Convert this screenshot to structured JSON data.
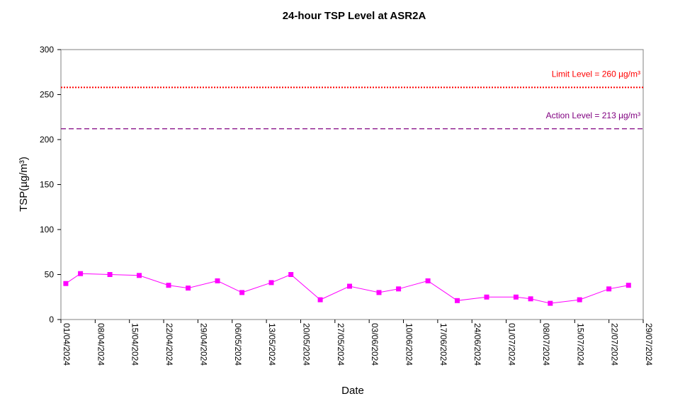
{
  "chart_data": {
    "type": "line",
    "title": "24-hour TSP Level at ASR2A",
    "xlabel": "Date",
    "ylabel": "TSP(µg/m³)",
    "ylim": [
      0,
      300
    ],
    "yticks": [
      "0",
      "50",
      "100",
      "150",
      "200",
      "250",
      "300"
    ],
    "xlim": [
      "2024-04-01",
      "2024-07-29"
    ],
    "xticks": [
      "01/04/2024",
      "08/04/2024",
      "15/04/2024",
      "22/04/2024",
      "29/04/2024",
      "06/05/2024",
      "13/05/2024",
      "20/05/2024",
      "27/05/2024",
      "03/06/2024",
      "10/06/2024",
      "17/06/2024",
      "24/06/2024",
      "01/07/2024",
      "08/07/2024",
      "15/07/2024",
      "22/07/2024",
      "29/07/2024"
    ],
    "grid": false,
    "legend": "none",
    "series": [
      {
        "color": "#ff00ff",
        "marker": "square",
        "x": [
          "2024-04-02",
          "2024-04-05",
          "2024-04-11",
          "2024-04-17",
          "2024-04-23",
          "2024-04-27",
          "2024-05-03",
          "2024-05-08",
          "2024-05-14",
          "2024-05-18",
          "2024-05-24",
          "2024-05-30",
          "2024-06-05",
          "2024-06-09",
          "2024-06-15",
          "2024-06-21",
          "2024-06-27",
          "2024-07-03",
          "2024-07-06",
          "2024-07-10",
          "2024-07-16",
          "2024-07-22",
          "2024-07-26"
        ],
        "y": [
          40,
          51,
          50,
          49,
          38,
          35,
          43,
          30,
          41,
          50,
          22,
          37,
          30,
          34,
          43,
          21,
          25,
          25,
          23,
          18,
          22,
          34,
          38
        ]
      }
    ],
    "reference_lines": [
      {
        "label": "Limit Level  = 260 µg/m³",
        "y": 258,
        "color": "#ff0000",
        "style": "dotted"
      },
      {
        "label": "Action Level  = 213 µg/m³",
        "y": 212,
        "color": "#800080",
        "style": "dashed"
      }
    ]
  }
}
